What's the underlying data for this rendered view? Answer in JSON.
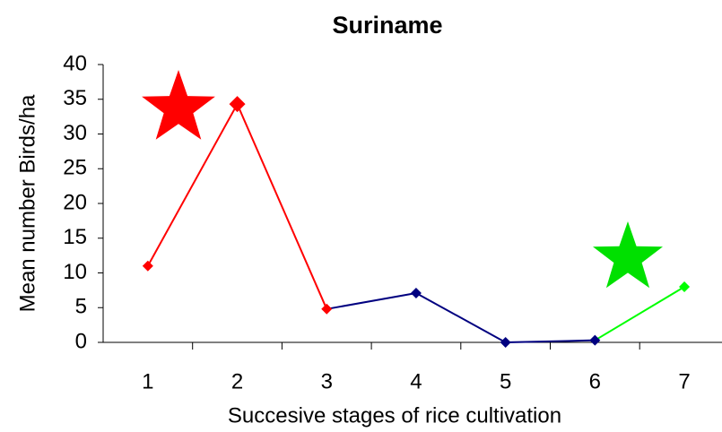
{
  "chart_data": {
    "type": "line",
    "title": "Suriname",
    "x_label": "Succesive stages of rice cultivation",
    "y_label": "Mean number Birds/ha",
    "categories": [
      "1",
      "2",
      "3",
      "4",
      "5",
      "6",
      "7"
    ],
    "values": [
      11,
      34.3,
      4.8,
      7.1,
      0,
      0.3,
      8
    ],
    "colors": [
      "#ff0000",
      "#ff0000",
      "#ff0000",
      "#000080",
      "#000080",
      "#000080",
      "#00ff00"
    ],
    "ylim": [
      0,
      40
    ],
    "yticks": [
      0,
      5,
      10,
      15,
      20,
      25,
      30,
      35,
      40
    ],
    "grid": false
  }
}
